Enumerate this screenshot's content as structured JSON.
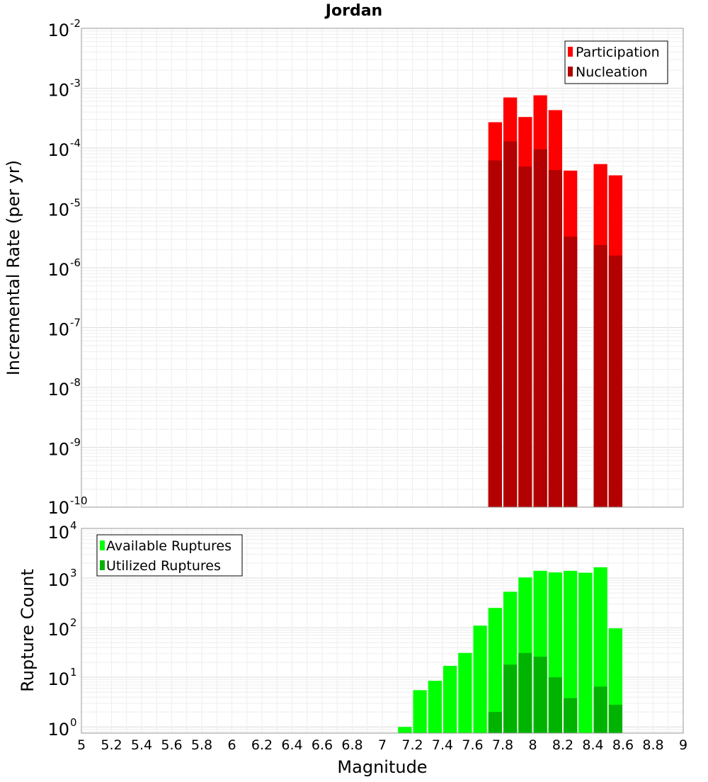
{
  "chart_data": [
    {
      "type": "bar",
      "title": "Jordan",
      "xlabel": "",
      "ylabel": "Incremental Rate (per yr)",
      "yscale": "log",
      "ylim": [
        1e-10,
        0.01
      ],
      "xlim": [
        5,
        9
      ],
      "bin_width": 0.1,
      "y_ticks": [
        {
          "base": "10",
          "exp": "-2",
          "value": 0.01
        },
        {
          "base": "10",
          "exp": "-3",
          "value": 0.001
        },
        {
          "base": "10",
          "exp": "-4",
          "value": 0.0001
        },
        {
          "base": "10",
          "exp": "-5",
          "value": 1e-05
        },
        {
          "base": "10",
          "exp": "-6",
          "value": 1e-06
        },
        {
          "base": "10",
          "exp": "-7",
          "value": 1e-07
        },
        {
          "base": "10",
          "exp": "-8",
          "value": 1e-08
        },
        {
          "base": "10",
          "exp": "-9",
          "value": 1e-09
        },
        {
          "base": "10",
          "exp": "-10",
          "value": 1e-10
        }
      ],
      "legend_position": "top-right",
      "series": [
        {
          "name": "Participation",
          "color": "#ff0000",
          "x": [
            7.75,
            7.85,
            7.95,
            8.05,
            8.15,
            8.25,
            8.45,
            8.55
          ],
          "values": [
            0.00027,
            0.0007,
            0.00033,
            0.00076,
            0.00043,
            4.2e-05,
            5.4e-05,
            3.5e-05
          ]
        },
        {
          "name": "Nucleation",
          "color": "#b30000",
          "x": [
            7.75,
            7.85,
            7.95,
            8.05,
            8.15,
            8.25,
            8.45,
            8.55
          ],
          "values": [
            6.2e-05,
            0.00013,
            4.9e-05,
            9.5e-05,
            4.3e-05,
            3.3e-06,
            2.4e-06,
            1.6e-06
          ]
        }
      ]
    },
    {
      "type": "bar",
      "title": "",
      "xlabel": "Magnitude",
      "ylabel": "Rupture Count",
      "yscale": "log",
      "ylim": [
        0.75,
        10000
      ],
      "xlim": [
        5,
        9
      ],
      "bin_width": 0.1,
      "x_ticks": [
        "5",
        "5.2",
        "5.4",
        "5.6",
        "5.8",
        "6",
        "6.2",
        "6.4",
        "6.6",
        "6.8",
        "7",
        "7.2",
        "7.4",
        "7.6",
        "7.8",
        "8",
        "8.2",
        "8.4",
        "8.6",
        "8.8",
        "9"
      ],
      "y_ticks": [
        {
          "base": "10",
          "exp": "4",
          "value": 10000
        },
        {
          "base": "10",
          "exp": "3",
          "value": 1000
        },
        {
          "base": "10",
          "exp": "2",
          "value": 100
        },
        {
          "base": "10",
          "exp": "1",
          "value": 10
        },
        {
          "base": "10",
          "exp": "0",
          "value": 1
        }
      ],
      "legend_position": "top-left",
      "series": [
        {
          "name": "Available Ruptures",
          "color": "#00ff00",
          "x": [
            7.15,
            7.25,
            7.35,
            7.45,
            7.55,
            7.65,
            7.75,
            7.85,
            7.95,
            8.05,
            8.15,
            8.25,
            8.35,
            8.45,
            8.55
          ],
          "values": [
            1,
            5.5,
            8.5,
            17,
            31,
            110,
            250,
            530,
            1030,
            1400,
            1300,
            1400,
            1280,
            1650,
            97
          ]
        },
        {
          "name": "Utilized Ruptures",
          "color": "#00b300",
          "x": [
            7.75,
            7.85,
            7.95,
            8.05,
            8.15,
            8.25,
            8.45,
            8.55
          ],
          "values": [
            2,
            18,
            31,
            26,
            10,
            3.8,
            6.5,
            2.8
          ]
        }
      ]
    }
  ]
}
